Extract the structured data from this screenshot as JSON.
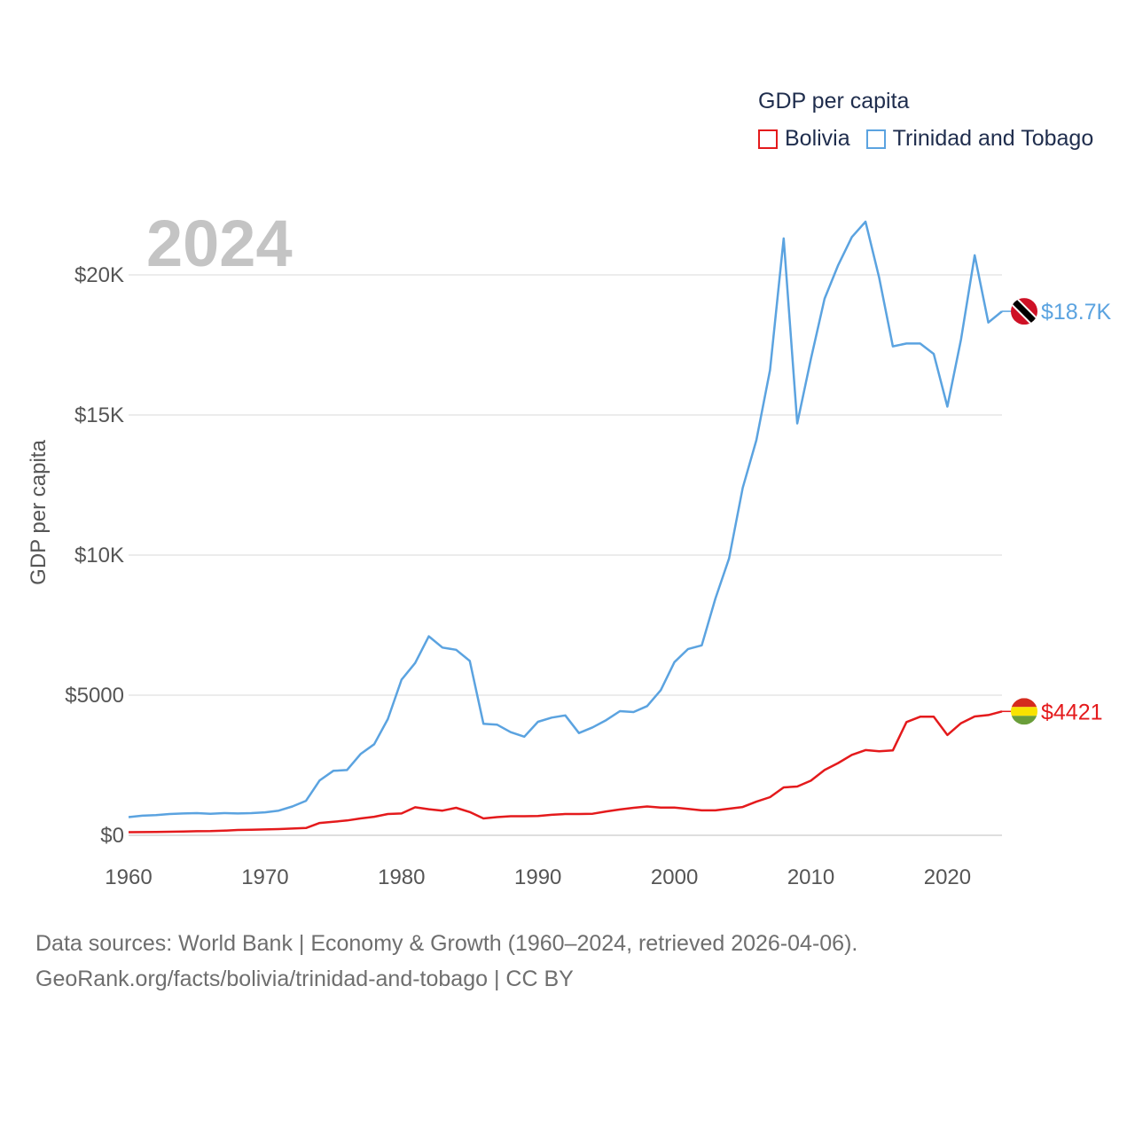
{
  "legend": {
    "title": "GDP per capita",
    "items": [
      {
        "label": "Bolivia",
        "color": "#e41a1c"
      },
      {
        "label": "Trinidad and Tobago",
        "color": "#5ba3e0"
      }
    ]
  },
  "year_label": "2024",
  "source": {
    "line1": "Data sources: World Bank | Economy & Growth (1960–2024, retrieved 2026-04-06).",
    "line2": "GeoRank.org/facts/bolivia/trinidad-and-tobago | CC BY"
  },
  "chart_data": {
    "type": "line",
    "title": "GDP per capita",
    "xlabel": "",
    "ylabel": "GDP per capita",
    "xlim": [
      1960,
      2024
    ],
    "ylim": [
      0,
      22000
    ],
    "x_ticks": [
      1960,
      1970,
      1980,
      1990,
      2000,
      2010,
      2020
    ],
    "x_tick_labels": [
      "1960",
      "1970",
      "1980",
      "1990",
      "2000",
      "2010",
      "2020"
    ],
    "y_ticks": [
      0,
      5000,
      10000,
      15000,
      20000
    ],
    "y_tick_labels": [
      "$0",
      "$5000",
      "$10K",
      "$15K",
      "$20K"
    ],
    "grid": true,
    "legend_position": "top-right",
    "x": [
      1960,
      1961,
      1962,
      1963,
      1964,
      1965,
      1966,
      1967,
      1968,
      1969,
      1970,
      1971,
      1972,
      1973,
      1974,
      1975,
      1976,
      1977,
      1978,
      1979,
      1980,
      1981,
      1982,
      1983,
      1984,
      1985,
      1986,
      1987,
      1988,
      1989,
      1990,
      1991,
      1992,
      1993,
      1994,
      1995,
      1996,
      1997,
      1998,
      1999,
      2000,
      2001,
      2002,
      2003,
      2004,
      2005,
      2006,
      2007,
      2008,
      2009,
      2010,
      2011,
      2012,
      2013,
      2014,
      2015,
      2016,
      2017,
      2018,
      2019,
      2020,
      2021,
      2022,
      2023,
      2024
    ],
    "series": [
      {
        "name": "Trinidad and Tobago",
        "color": "#5ba3e0",
        "end_label": "$18.7K",
        "flag": "trinidad-and-tobago-flag",
        "values": [
          650,
          700,
          720,
          760,
          780,
          790,
          770,
          790,
          780,
          790,
          820,
          880,
          1030,
          1230,
          1960,
          2300,
          2330,
          2900,
          3250,
          4150,
          5550,
          6150,
          7100,
          6700,
          6620,
          6220,
          3980,
          3950,
          3680,
          3520,
          4050,
          4200,
          4280,
          3650,
          3850,
          4110,
          4430,
          4400,
          4610,
          5180,
          6180,
          6650,
          6780,
          8450,
          9880,
          12400,
          14100,
          16600,
          21300,
          14700,
          17000,
          19150,
          20350,
          21350,
          21900,
          19900,
          17450,
          17550,
          17550,
          17180,
          15300,
          17700,
          20700,
          18300,
          18700
        ]
      },
      {
        "name": "Bolivia",
        "color": "#e41a1c",
        "end_label": "$4421",
        "flag": "bolivia-flag",
        "values": [
          110,
          115,
          120,
          125,
          135,
          145,
          150,
          165,
          190,
          200,
          210,
          220,
          240,
          260,
          440,
          480,
          530,
          600,
          660,
          760,
          780,
          1000,
          930,
          880,
          980,
          830,
          600,
          650,
          680,
          680,
          690,
          730,
          760,
          760,
          770,
          850,
          920,
          980,
          1030,
          990,
          990,
          940,
          890,
          890,
          950,
          1010,
          1200,
          1360,
          1710,
          1740,
          1950,
          2330,
          2580,
          2870,
          3040,
          3000,
          3030,
          4040,
          4230,
          4230,
          3580,
          4000,
          4240,
          4290,
          4421
        ]
      }
    ]
  }
}
